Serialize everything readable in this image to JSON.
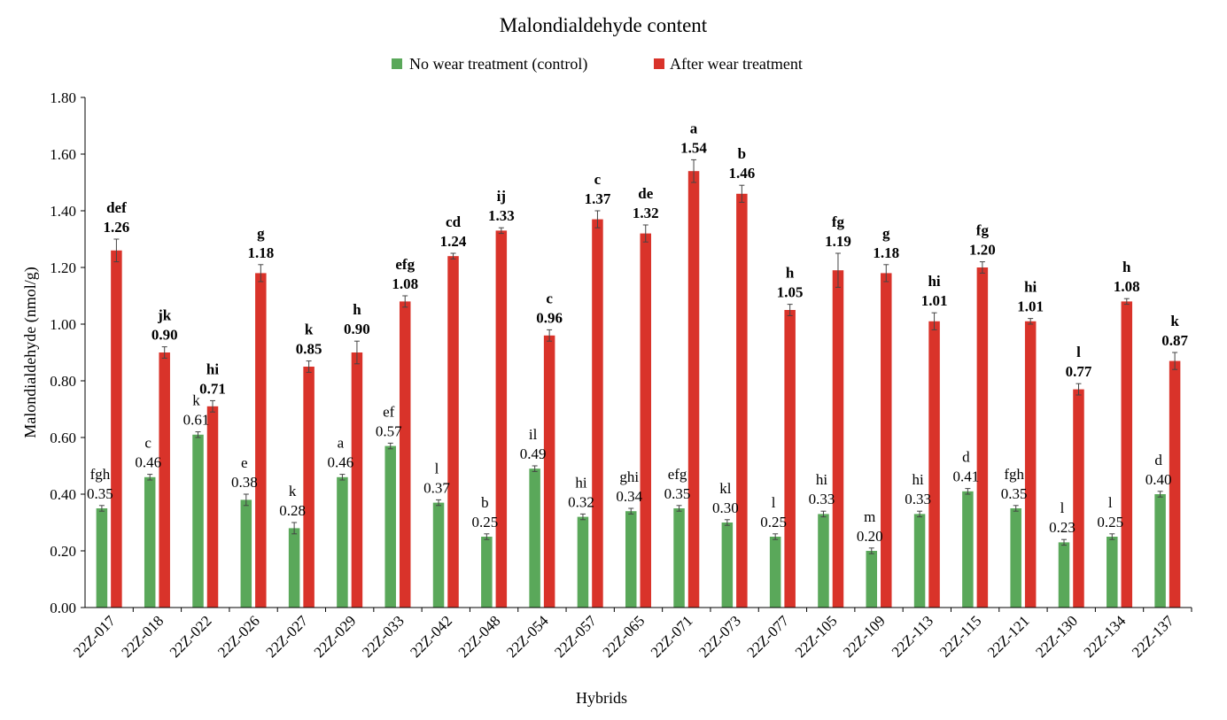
{
  "chart_data": {
    "type": "bar",
    "title": "Malondialdehyde content",
    "xlabel": "Hybrids",
    "ylabel": "Malondialdehyde (nmol/g)",
    "ylim": [
      0,
      1.8
    ],
    "yticks": [
      "0.00",
      "0.20",
      "0.40",
      "0.60",
      "0.80",
      "1.00",
      "1.20",
      "1.40",
      "1.60",
      "1.80"
    ],
    "legend_position": "top",
    "grid": false,
    "categories": [
      "22Z-017",
      "22Z-018",
      "22Z-022",
      "22Z-026",
      "22Z-027",
      "22Z-029",
      "22Z-033",
      "22Z-042",
      "22Z-048",
      "22Z-054",
      "22Z-057",
      "22Z-065",
      "22Z-071",
      "22Z-073",
      "22Z-077",
      "22Z-105",
      "22Z-109",
      "22Z-113",
      "22Z-115",
      "22Z-121",
      "22Z-130",
      "22Z-134",
      "22Z-137"
    ],
    "series": [
      {
        "name": "No wear treatment (control)",
        "color": "#5aa85a",
        "values": [
          0.35,
          0.46,
          0.61,
          0.38,
          0.28,
          0.46,
          0.57,
          0.37,
          0.25,
          0.49,
          0.32,
          0.34,
          0.35,
          0.3,
          0.25,
          0.33,
          0.2,
          0.33,
          0.41,
          0.35,
          0.23,
          0.25,
          0.4
        ],
        "labels": [
          "0.35",
          "0.46",
          "0.61",
          "0.38",
          "0.28",
          "0.46",
          "0.57",
          "0.37",
          "0.25",
          "0.49",
          "0.32",
          "0.34",
          "0.35",
          "0.30",
          "0.25",
          "0.33",
          "0.20",
          "0.33",
          "0.41",
          "0.35",
          "0.23",
          "0.25",
          "0.40"
        ],
        "letters": [
          "fgh",
          "c",
          "k",
          "e",
          "k",
          "a",
          "ef",
          "l",
          "b",
          "il",
          "hi",
          "ghi",
          "efg",
          "kl",
          "l",
          "hi",
          "m",
          "hi",
          "d",
          "fgh",
          "l",
          "l",
          "d"
        ],
        "errors": [
          0.01,
          0.01,
          0.01,
          0.02,
          0.02,
          0.01,
          0.01,
          0.01,
          0.01,
          0.01,
          0.01,
          0.01,
          0.01,
          0.01,
          0.01,
          0.01,
          0.01,
          0.01,
          0.01,
          0.01,
          0.01,
          0.01,
          0.01
        ]
      },
      {
        "name": "After wear treatment",
        "color": "#d9332a",
        "values": [
          1.26,
          0.9,
          0.71,
          1.18,
          0.85,
          0.9,
          1.08,
          1.24,
          1.33,
          0.96,
          1.37,
          1.32,
          1.54,
          1.46,
          1.05,
          1.19,
          1.18,
          1.01,
          1.2,
          1.01,
          0.77,
          1.08,
          0.87
        ],
        "labels": [
          "1.26",
          "0.90",
          "0.71",
          "1.18",
          "0.85",
          "0.90",
          "1.08",
          "1.24",
          "1.33",
          "0.96",
          "1.37",
          "1.32",
          "1.54",
          "1.46",
          "1.05",
          "1.19",
          "1.18",
          "1.01",
          "1.20",
          "1.01",
          "0.77",
          "1.08",
          "0.87"
        ],
        "letters": [
          "def",
          "jk",
          "hi",
          "g",
          "k",
          "h",
          "efg",
          "cd",
          "ij",
          "c",
          "c",
          "de",
          "a",
          "b",
          "h",
          "fg",
          "g",
          "hi",
          "fg",
          "hi",
          "l",
          "h",
          "k"
        ],
        "errors": [
          0.04,
          0.02,
          0.02,
          0.03,
          0.02,
          0.04,
          0.02,
          0.01,
          0.01,
          0.02,
          0.03,
          0.03,
          0.04,
          0.03,
          0.02,
          0.06,
          0.03,
          0.03,
          0.02,
          0.01,
          0.02,
          0.01,
          0.03
        ]
      }
    ]
  }
}
